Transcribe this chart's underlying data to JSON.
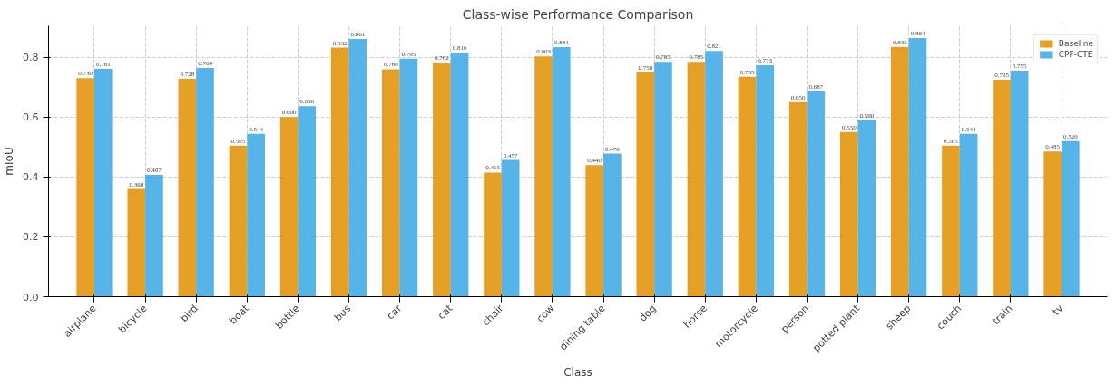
{
  "chart_data": {
    "type": "bar",
    "title": "Class-wise Performance Comparison",
    "xlabel": "Class",
    "ylabel": "mIoU",
    "categories": [
      "airplane",
      "bicycle",
      "bird",
      "boat",
      "bottle",
      "bus",
      "car",
      "cat",
      "chair",
      "cow",
      "dining table",
      "dog",
      "horse",
      "motorcycle",
      "person",
      "potted plant",
      "sheep",
      "couch",
      "train",
      "tv"
    ],
    "series": [
      {
        "name": "Baseline",
        "color": "#e69f25",
        "values": [
          0.73,
          0.36,
          0.728,
          0.505,
          0.6,
          0.832,
          0.76,
          0.782,
          0.415,
          0.803,
          0.44,
          0.75,
          0.785,
          0.735,
          0.65,
          0.55,
          0.835,
          0.505,
          0.725,
          0.485
        ],
        "value_labels": [
          "0.730",
          "0.360",
          "0.728",
          "0.505",
          "0.600",
          "0.832",
          "0.760",
          "0.782",
          "0.415",
          "0.803",
          "0.440",
          "0.750",
          "0.785",
          "0.735",
          "0.650",
          "0.550",
          "0.835",
          "0.505",
          "0.725",
          "0.485"
        ]
      },
      {
        "name": "CPF-CTE",
        "color": "#56b4e9",
        "values": [
          0.761,
          0.407,
          0.764,
          0.544,
          0.636,
          0.861,
          0.795,
          0.816,
          0.457,
          0.834,
          0.478,
          0.785,
          0.821,
          0.773,
          0.687,
          0.59,
          0.864,
          0.544,
          0.755,
          0.52
        ],
        "value_labels": [
          "0.761",
          "0.407",
          "0.764",
          "0.544",
          "0.636",
          "0.861",
          "0.795",
          "0.816",
          "0.457",
          "0.834",
          "0.478",
          "0.785",
          "0.821",
          "0.773",
          "0.687",
          "0.590",
          "0.864",
          "0.544",
          "0.755",
          "0.520"
        ]
      }
    ],
    "ylim": [
      0,
      0.905
    ],
    "yticks": [
      {
        "value": 0,
        "label": "0.0"
      },
      {
        "value": 0.2,
        "label": "0.2"
      },
      {
        "value": 0.4,
        "label": "0.4"
      },
      {
        "value": 0.6,
        "label": "0.6"
      },
      {
        "value": 0.8,
        "label": "0.8"
      }
    ],
    "grid": true,
    "legend": "top right"
  }
}
